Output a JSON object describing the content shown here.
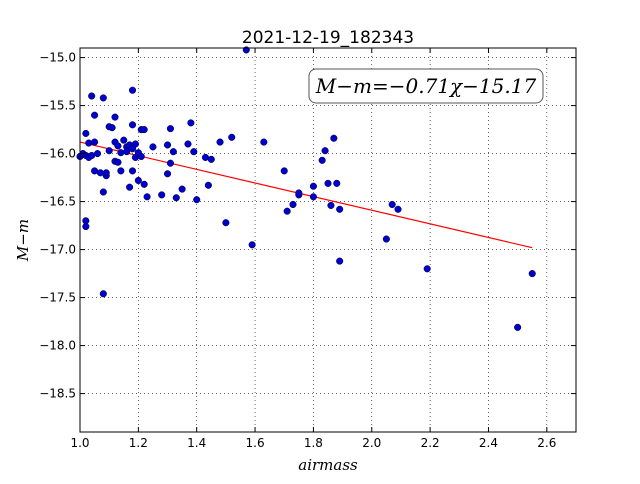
{
  "chart_data": {
    "type": "scatter",
    "title": "2021-12-19_182343",
    "xlabel": "airmass",
    "ylabel": "M−m",
    "xlim": [
      1.0,
      2.7
    ],
    "ylim": [
      -18.9,
      -14.9
    ],
    "x_ticks": [
      "1.0",
      "1.2",
      "1.4",
      "1.6",
      "1.8",
      "2.0",
      "2.2",
      "2.4",
      "2.6"
    ],
    "y_ticks": [
      "−15.0",
      "−15.5",
      "−16.0",
      "−16.5",
      "−17.0",
      "−17.5",
      "−18.0",
      "−18.5"
    ],
    "grid": true,
    "annotation": "M−m=−0.71χ−15.17",
    "fit": {
      "slope": -0.71,
      "intercept": -15.17,
      "x_range": [
        1.0,
        2.55
      ],
      "color": "#ff0000"
    },
    "point_color": "#0000cc",
    "points": [
      [
        1.0,
        -16.03
      ],
      [
        1.01,
        -16.0
      ],
      [
        1.02,
        -15.79
      ],
      [
        1.02,
        -16.02
      ],
      [
        1.02,
        -16.7
      ],
      [
        1.02,
        -16.76
      ],
      [
        1.03,
        -16.04
      ],
      [
        1.03,
        -15.89
      ],
      [
        1.04,
        -15.4
      ],
      [
        1.04,
        -16.02
      ],
      [
        1.05,
        -15.88
      ],
      [
        1.05,
        -15.6
      ],
      [
        1.05,
        -16.18
      ],
      [
        1.06,
        -16.0
      ],
      [
        1.07,
        -16.2
      ],
      [
        1.08,
        -15.42
      ],
      [
        1.08,
        -17.46
      ],
      [
        1.08,
        -16.4
      ],
      [
        1.09,
        -16.23
      ],
      [
        1.09,
        -16.2
      ],
      [
        1.1,
        -15.72
      ],
      [
        1.1,
        -15.97
      ],
      [
        1.11,
        -15.73
      ],
      [
        1.12,
        -15.62
      ],
      [
        1.12,
        -15.88
      ],
      [
        1.12,
        -16.08
      ],
      [
        1.13,
        -16.09
      ],
      [
        1.13,
        -15.92
      ],
      [
        1.14,
        -15.99
      ],
      [
        1.14,
        -16.18
      ],
      [
        1.15,
        -15.86
      ],
      [
        1.16,
        -15.93
      ],
      [
        1.16,
        -15.98
      ],
      [
        1.17,
        -15.91
      ],
      [
        1.17,
        -16.35
      ],
      [
        1.18,
        -15.34
      ],
      [
        1.18,
        -15.7
      ],
      [
        1.18,
        -15.95
      ],
      [
        1.18,
        -16.18
      ],
      [
        1.19,
        -15.9
      ],
      [
        1.19,
        -16.04
      ],
      [
        1.2,
        -16.28
      ],
      [
        1.2,
        -15.99
      ],
      [
        1.21,
        -15.75
      ],
      [
        1.21,
        -16.03
      ],
      [
        1.22,
        -15.75
      ],
      [
        1.22,
        -16.32
      ],
      [
        1.23,
        -16.45
      ],
      [
        1.25,
        -15.93
      ],
      [
        1.28,
        -16.43
      ],
      [
        1.3,
        -15.91
      ],
      [
        1.3,
        -16.21
      ],
      [
        1.31,
        -15.74
      ],
      [
        1.31,
        -16.1
      ],
      [
        1.32,
        -15.98
      ],
      [
        1.33,
        -16.46
      ],
      [
        1.35,
        -16.37
      ],
      [
        1.37,
        -15.9
      ],
      [
        1.38,
        -15.68
      ],
      [
        1.39,
        -15.98
      ],
      [
        1.4,
        -16.48
      ],
      [
        1.43,
        -16.04
      ],
      [
        1.44,
        -16.33
      ],
      [
        1.45,
        -16.06
      ],
      [
        1.48,
        -15.88
      ],
      [
        1.5,
        -16.72
      ],
      [
        1.52,
        -15.83
      ],
      [
        1.57,
        -14.92
      ],
      [
        1.59,
        -16.95
      ],
      [
        1.63,
        -15.88
      ],
      [
        1.7,
        -16.18
      ],
      [
        1.71,
        -16.6
      ],
      [
        1.73,
        -16.53
      ],
      [
        1.75,
        -16.43
      ],
      [
        1.75,
        -16.41
      ],
      [
        1.8,
        -16.34
      ],
      [
        1.8,
        -16.45
      ],
      [
        1.83,
        -16.07
      ],
      [
        1.84,
        -15.97
      ],
      [
        1.85,
        -16.31
      ],
      [
        1.86,
        -16.54
      ],
      [
        1.87,
        -15.84
      ],
      [
        1.88,
        -16.31
      ],
      [
        1.89,
        -16.58
      ],
      [
        1.89,
        -17.12
      ],
      [
        2.05,
        -16.89
      ],
      [
        2.07,
        -16.53
      ],
      [
        2.09,
        -16.58
      ],
      [
        2.19,
        -17.2
      ],
      [
        2.5,
        -17.81
      ],
      [
        2.55,
        -17.25
      ]
    ]
  }
}
